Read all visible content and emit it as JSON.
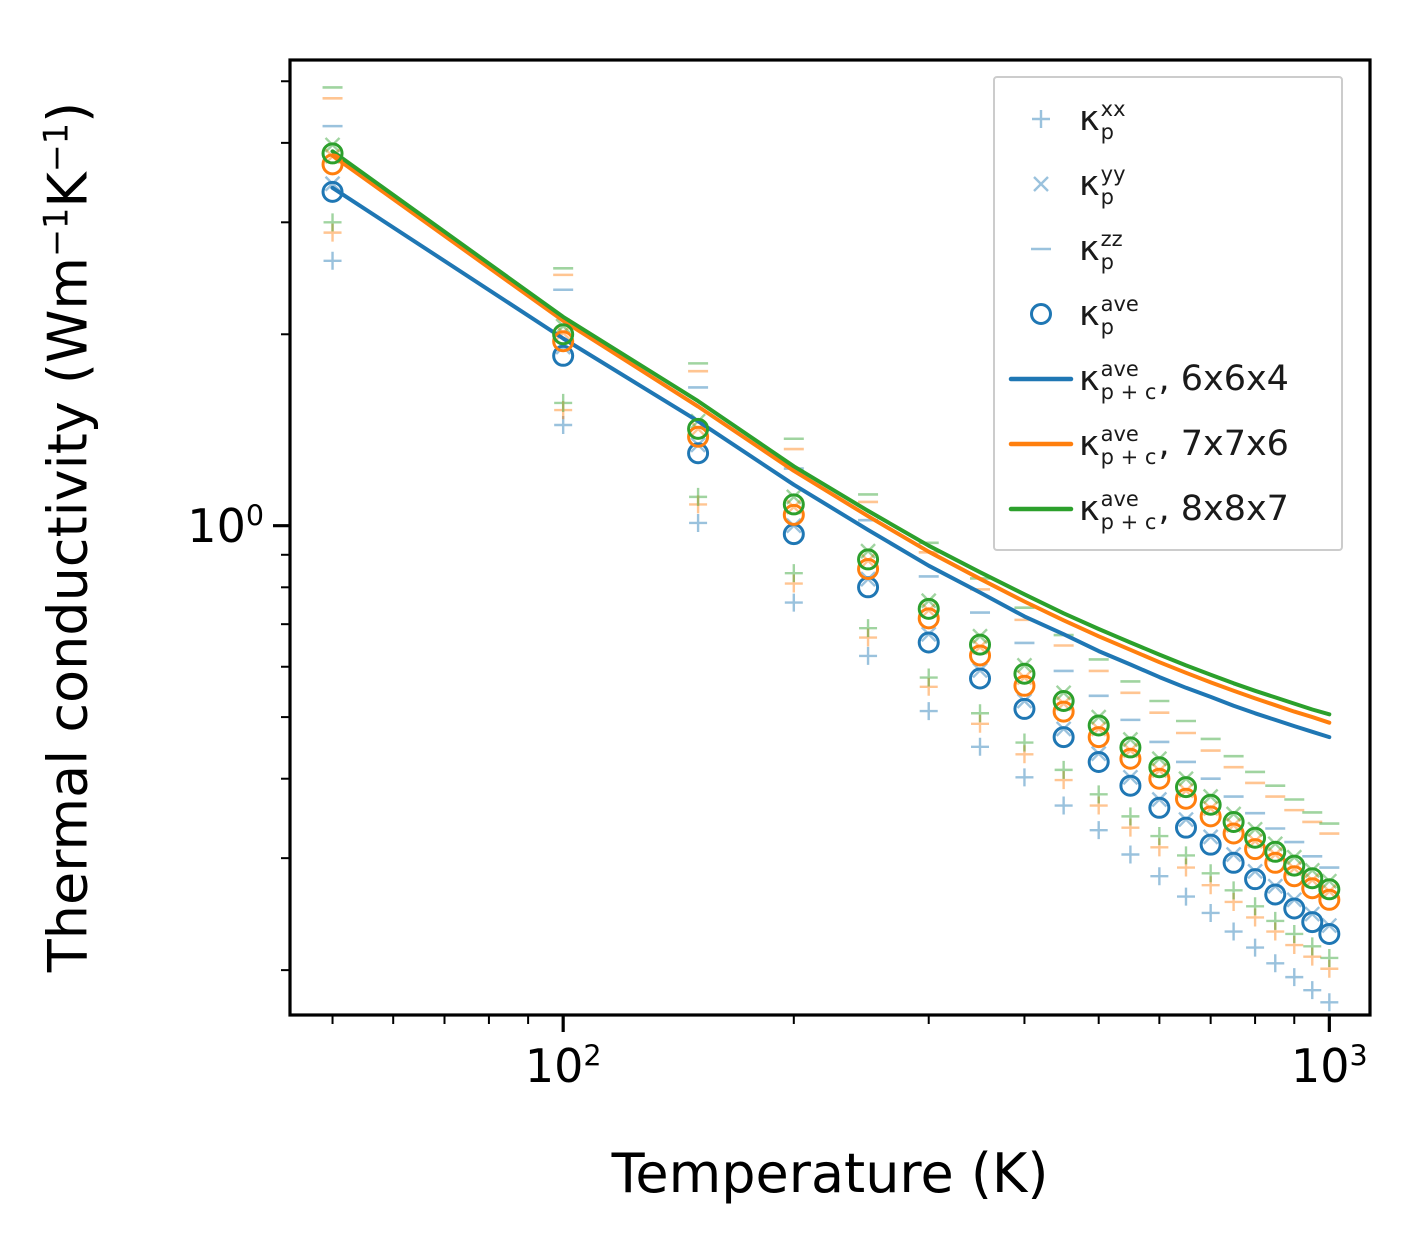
{
  "chart_data": {
    "type": "scatter+line",
    "title": "",
    "xlabel": "Temperature (K)",
    "ylabel": "Thermal conductivity (Wm⁻¹K⁻¹)",
    "ylabel_parts": [
      {
        "t": "Thermal conductivity (Wm"
      },
      {
        "t": "−1",
        "sup": true
      },
      {
        "t": "K"
      },
      {
        "t": "−1",
        "sup": true
      },
      {
        "t": ")"
      }
    ],
    "x_scale": "log",
    "y_scale": "log",
    "xlim": [
      44,
      1130
    ],
    "ylim": [
      0.17,
      5.4
    ],
    "grid": false,
    "legend_position": "upper right",
    "x_major_ticks": [
      {
        "value": 100,
        "base": "10",
        "exp": "2"
      },
      {
        "value": 1000,
        "base": "10",
        "exp": "3"
      }
    ],
    "x_minor_ticks": [
      50,
      60,
      70,
      80,
      90,
      200,
      300,
      400,
      500,
      600,
      700,
      800,
      900
    ],
    "y_major_ticks": [
      {
        "value": 1,
        "base": "10",
        "exp": "0"
      }
    ],
    "y_minor_ticks": [
      0.2,
      0.3,
      0.4,
      0.5,
      0.6,
      0.7,
      0.8,
      0.9,
      2,
      3,
      4,
      5
    ],
    "colors": {
      "blue": "#1f77b4",
      "orange": "#ff7f0e",
      "green": "#2ca02c"
    },
    "temperatures": [
      50,
      100,
      150,
      200,
      250,
      300,
      350,
      400,
      450,
      500,
      550,
      600,
      650,
      700,
      750,
      800,
      850,
      900,
      950,
      1000
    ],
    "marker_series": [
      {
        "name": "kappa_p_xx_6x6x4",
        "marker": "plus",
        "color": "blue",
        "alpha": 0.45,
        "values": [
          2.61,
          1.44,
          1.01,
          0.757,
          0.624,
          0.511,
          0.449,
          0.402,
          0.363,
          0.332,
          0.304,
          0.281,
          0.261,
          0.246,
          0.23,
          0.217,
          0.205,
          0.195,
          0.186,
          0.178
        ]
      },
      {
        "name": "kappa_p_yy_6x6x4",
        "marker": "x",
        "color": "blue",
        "alpha": 0.45,
        "values": [
          3.45,
          1.91,
          1.34,
          1.0,
          0.824,
          0.675,
          0.592,
          0.53,
          0.479,
          0.438,
          0.402,
          0.371,
          0.345,
          0.324,
          0.304,
          0.286,
          0.271,
          0.258,
          0.245,
          0.235
        ]
      },
      {
        "name": "kappa_p_zz_6x6x4",
        "marker": "dash",
        "color": "blue",
        "alpha": 0.45,
        "values": [
          4.25,
          2.35,
          1.65,
          1.23,
          1.02,
          0.832,
          0.73,
          0.654,
          0.591,
          0.54,
          0.495,
          0.457,
          0.425,
          0.4,
          0.375,
          0.353,
          0.334,
          0.318,
          0.302,
          0.29
        ]
      },
      {
        "name": "kappa_p_xx_7x7x6",
        "marker": "plus",
        "color": "orange",
        "alpha": 0.45,
        "values": [
          2.89,
          1.52,
          1.08,
          0.811,
          0.667,
          0.558,
          0.488,
          0.437,
          0.398,
          0.363,
          0.335,
          0.312,
          0.29,
          0.272,
          0.256,
          0.242,
          0.23,
          0.219,
          0.21,
          0.201
        ]
      },
      {
        "name": "kappa_p_yy_7x7x6",
        "marker": "x",
        "color": "orange",
        "alpha": 0.45,
        "values": [
          3.81,
          2.01,
          1.42,
          1.07,
          0.881,
          0.736,
          0.644,
          0.577,
          0.525,
          0.479,
          0.443,
          0.412,
          0.383,
          0.359,
          0.338,
          0.319,
          0.304,
          0.289,
          0.277,
          0.266
        ]
      },
      {
        "name": "kappa_p_zz_7x7x6",
        "marker": "dash",
        "color": "orange",
        "alpha": 0.45,
        "values": [
          4.7,
          2.48,
          1.75,
          1.32,
          1.09,
          0.908,
          0.794,
          0.711,
          0.648,
          0.591,
          0.546,
          0.508,
          0.472,
          0.443,
          0.417,
          0.394,
          0.375,
          0.357,
          0.342,
          0.328
        ]
      },
      {
        "name": "kappa_p_xx_8x8x7",
        "marker": "plus",
        "color": "green",
        "alpha": 0.45,
        "values": [
          3.0,
          1.56,
          1.11,
          0.842,
          0.69,
          0.577,
          0.507,
          0.456,
          0.413,
          0.378,
          0.349,
          0.325,
          0.303,
          0.284,
          0.267,
          0.252,
          0.239,
          0.228,
          0.218,
          0.209
        ]
      },
      {
        "name": "kappa_p_yy_8x8x7",
        "marker": "x",
        "color": "green",
        "alpha": 0.45,
        "values": [
          3.97,
          2.06,
          1.46,
          1.11,
          0.912,
          0.762,
          0.67,
          0.603,
          0.546,
          0.5,
          0.461,
          0.43,
          0.4,
          0.375,
          0.352,
          0.333,
          0.316,
          0.301,
          0.287,
          0.276
        ]
      },
      {
        "name": "kappa_p_zz_8x8x7",
        "marker": "dash",
        "color": "green",
        "alpha": 0.45,
        "values": [
          4.89,
          2.54,
          1.8,
          1.37,
          1.12,
          0.94,
          0.826,
          0.743,
          0.673,
          0.616,
          0.569,
          0.53,
          0.493,
          0.462,
          0.434,
          0.41,
          0.39,
          0.371,
          0.354,
          0.34
        ]
      },
      {
        "name": "kappa_p_ave_6x6x4",
        "marker": "circle",
        "color": "blue",
        "alpha": 1,
        "values": [
          3.35,
          1.85,
          1.3,
          0.97,
          0.8,
          0.655,
          0.575,
          0.515,
          0.465,
          0.425,
          0.39,
          0.36,
          0.335,
          0.315,
          0.295,
          0.278,
          0.263,
          0.25,
          0.238,
          0.228
        ]
      },
      {
        "name": "kappa_p_ave_7x7x6",
        "marker": "circle",
        "color": "orange",
        "alpha": 1,
        "values": [
          3.7,
          1.95,
          1.38,
          1.04,
          0.855,
          0.715,
          0.625,
          0.56,
          0.51,
          0.465,
          0.43,
          0.4,
          0.372,
          0.349,
          0.328,
          0.31,
          0.295,
          0.281,
          0.269,
          0.258
        ]
      },
      {
        "name": "kappa_p_ave_8x8x7",
        "marker": "circle",
        "color": "green",
        "alpha": 1,
        "values": [
          3.85,
          2.0,
          1.42,
          1.08,
          0.885,
          0.74,
          0.65,
          0.585,
          0.53,
          0.485,
          0.448,
          0.417,
          0.388,
          0.364,
          0.342,
          0.323,
          0.307,
          0.292,
          0.279,
          0.268
        ]
      }
    ],
    "line_series": [
      {
        "name": "kappa_p_plus_c_ave_6x6x4",
        "color": "blue",
        "values": [
          3.4,
          1.97,
          1.46,
          1.16,
          0.985,
          0.865,
          0.785,
          0.72,
          0.675,
          0.635,
          0.605,
          0.578,
          0.556,
          0.538,
          0.521,
          0.507,
          0.495,
          0.484,
          0.474,
          0.465
        ]
      },
      {
        "name": "kappa_p_plus_c_ave_7x7x6",
        "color": "orange",
        "values": [
          3.82,
          2.1,
          1.54,
          1.22,
          1.035,
          0.91,
          0.825,
          0.76,
          0.71,
          0.67,
          0.638,
          0.61,
          0.587,
          0.567,
          0.55,
          0.535,
          0.522,
          0.51,
          0.5,
          0.49
        ]
      },
      {
        "name": "kappa_p_plus_c_ave_8x8x7",
        "color": "green",
        "values": [
          3.88,
          2.13,
          1.57,
          1.24,
          1.055,
          0.93,
          0.845,
          0.78,
          0.728,
          0.688,
          0.655,
          0.627,
          0.603,
          0.583,
          0.565,
          0.55,
          0.537,
          0.525,
          0.514,
          0.505
        ]
      }
    ],
    "legend": [
      {
        "marker": "plus",
        "color": "blue",
        "alpha": 0.45,
        "label": {
          "base": "κ",
          "sup": "xx",
          "sub": "p",
          "suffix": ""
        }
      },
      {
        "marker": "x",
        "color": "blue",
        "alpha": 0.45,
        "label": {
          "base": "κ",
          "sup": "yy",
          "sub": "p",
          "suffix": ""
        }
      },
      {
        "marker": "dash",
        "color": "blue",
        "alpha": 0.45,
        "label": {
          "base": "κ",
          "sup": "zz",
          "sub": "p",
          "suffix": ""
        }
      },
      {
        "marker": "circle",
        "color": "blue",
        "alpha": 1,
        "label": {
          "base": "κ",
          "sup": "ave",
          "sub": "p",
          "suffix": ""
        }
      },
      {
        "marker": "line",
        "color": "blue",
        "alpha": 1,
        "label": {
          "base": "κ",
          "sup": "ave",
          "sub": "p + c",
          "suffix": ", 6x6x4"
        }
      },
      {
        "marker": "line",
        "color": "orange",
        "alpha": 1,
        "label": {
          "base": "κ",
          "sup": "ave",
          "sub": "p + c",
          "suffix": ", 7x7x6"
        }
      },
      {
        "marker": "line",
        "color": "green",
        "alpha": 1,
        "label": {
          "base": "κ",
          "sup": "ave",
          "sub": "p + c",
          "suffix": ", 8x8x7"
        }
      }
    ]
  }
}
